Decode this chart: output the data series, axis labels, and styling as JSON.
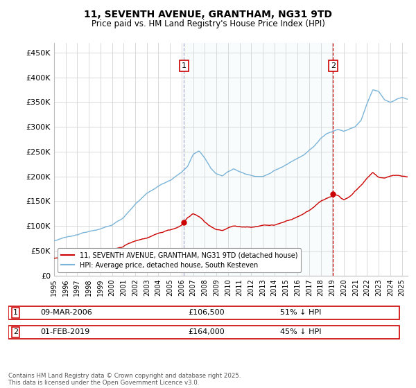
{
  "title": "11, SEVENTH AVENUE, GRANTHAM, NG31 9TD",
  "subtitle": "Price paid vs. HM Land Registry's House Price Index (HPI)",
  "ylim": [
    0,
    470000
  ],
  "yticks": [
    0,
    50000,
    100000,
    150000,
    200000,
    250000,
    300000,
    350000,
    400000,
    450000
  ],
  "ytick_labels": [
    "£0",
    "£50K",
    "£100K",
    "£150K",
    "£200K",
    "£250K",
    "£300K",
    "£350K",
    "£400K",
    "£450K"
  ],
  "hpi_color": "#7ab4d8",
  "hpi_fill_color": "#ddeef7",
  "price_color": "#cc0000",
  "vline1_color": "#aaaacc",
  "vline2_color": "#cc0000",
  "legend_line1": "11, SEVENTH AVENUE, GRANTHAM, NG31 9TD (detached house)",
  "legend_line2": "HPI: Average price, detached house, South Kesteven",
  "footer": "Contains HM Land Registry data © Crown copyright and database right 2025.\nThis data is licensed under the Open Government Licence v3.0.",
  "background_color": "#ffffff",
  "grid_color": "#cccccc",
  "marker1_year": 2006.19,
  "marker2_year": 2019.08,
  "marker1_price": 106500,
  "marker2_price": 164000,
  "xlim_start": 1995,
  "xlim_end": 2025.5
}
